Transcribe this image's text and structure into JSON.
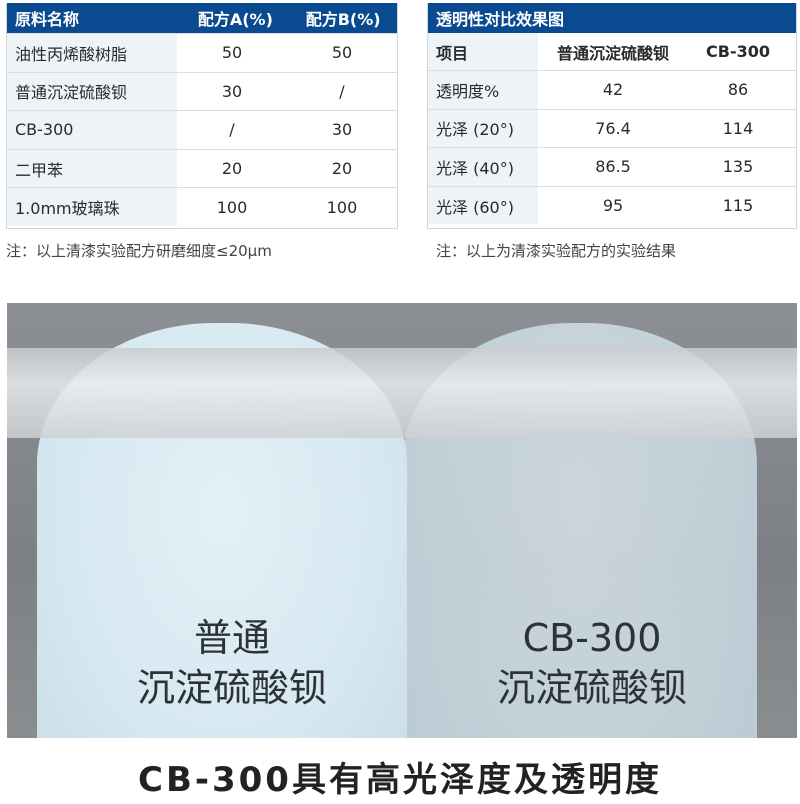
{
  "formula_table": {
    "headers": [
      "原料名称",
      "配方A(%)",
      "配方B(%)"
    ],
    "rows": [
      [
        "油性丙烯酸树脂",
        "50",
        "50"
      ],
      [
        "普通沉淀硫酸钡",
        "30",
        "/"
      ],
      [
        "CB-300",
        "/",
        "30"
      ],
      [
        "二甲苯",
        "20",
        "20"
      ],
      [
        "1.0mm玻璃珠",
        "100",
        "100"
      ]
    ],
    "note": "注：以上清漆实验配方研磨细度≤20μm"
  },
  "result_table": {
    "title": "透明性对比效果图",
    "headers": [
      "项目",
      "普通沉淀硫酸钡",
      "CB-300"
    ],
    "rows": [
      [
        "透明度%",
        "42",
        "86"
      ],
      [
        "光泽 (20°)",
        "76.4",
        "114"
      ],
      [
        "光泽 (40°)",
        "86.5",
        "135"
      ],
      [
        "光泽 (60°)",
        "95",
        "115"
      ]
    ],
    "note": "注：以上为清漆实验配方的实验结果"
  },
  "photo": {
    "left_label_1": "普通",
    "left_label_2": "沉淀硫酸钡",
    "right_label_1": "CB-300",
    "right_label_2": "沉淀硫酸钡"
  },
  "title": "CB-300具有高光泽度及透明度",
  "colors": {
    "header": "#0a4a91"
  }
}
